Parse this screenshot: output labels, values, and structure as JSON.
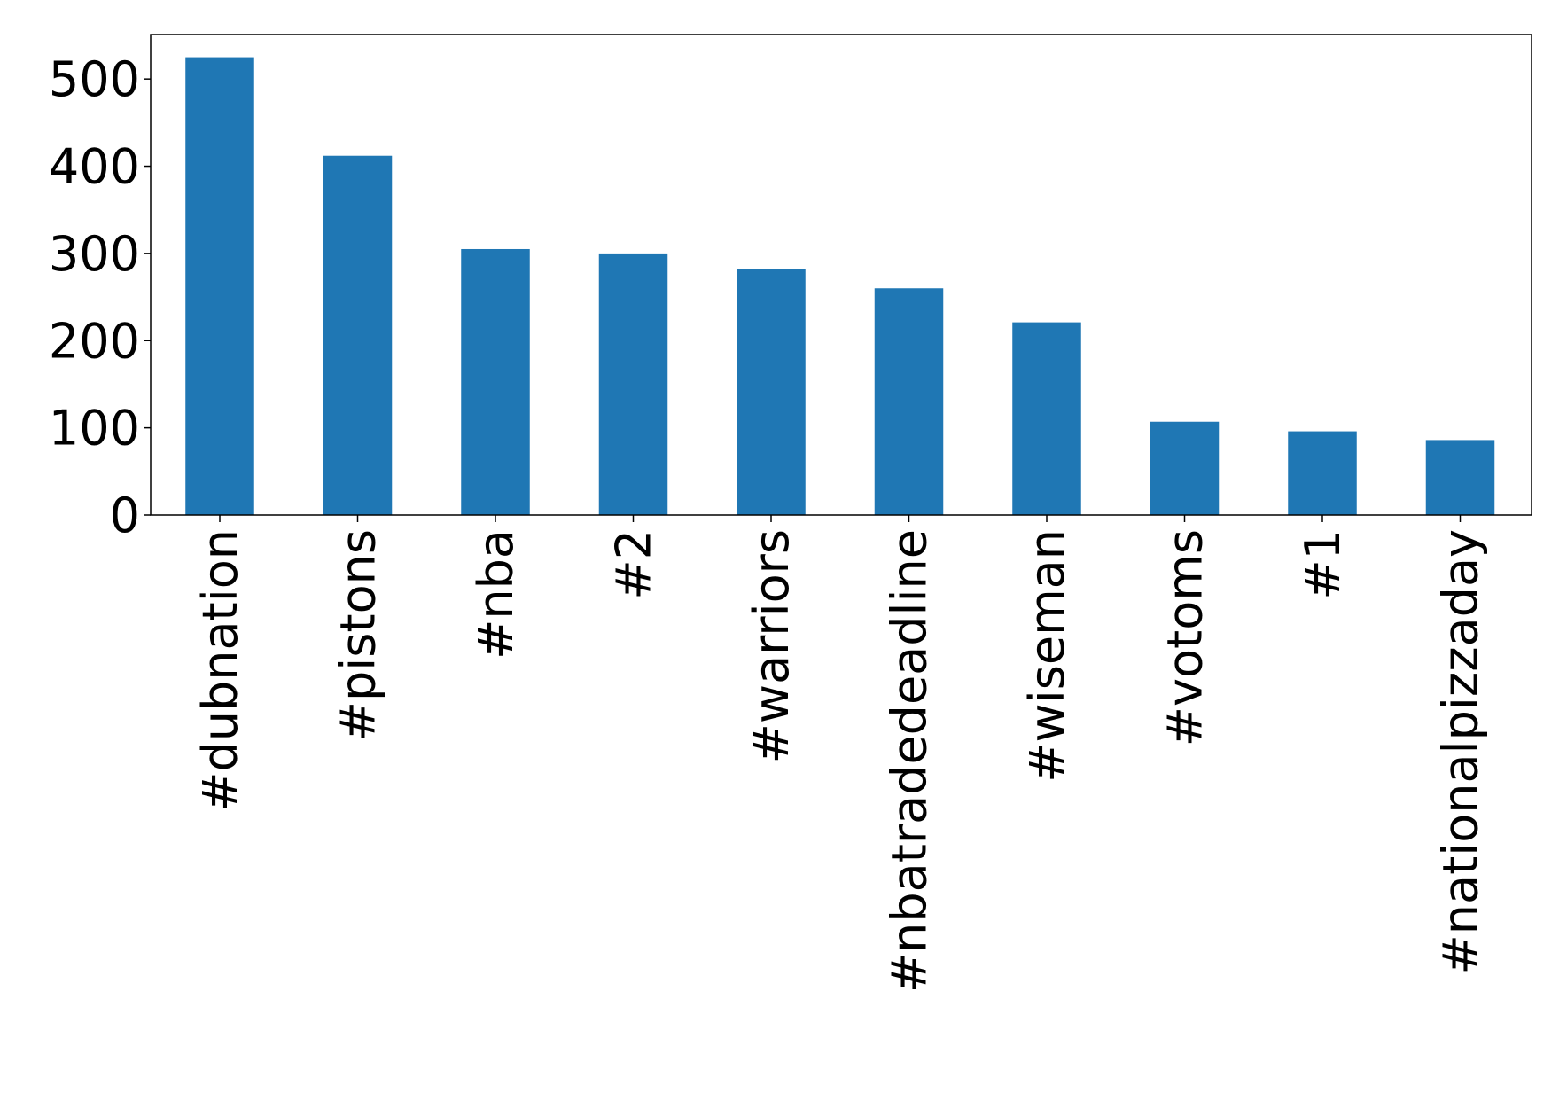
{
  "chart_data": {
    "type": "bar",
    "title": "",
    "xlabel": "",
    "ylabel": "",
    "categories": [
      "#dubnation",
      "#pistons",
      "#nba",
      "#2",
      "#warriors",
      "#nbatradedeadline",
      "#wiseman",
      "#votoms",
      "#1",
      "#nationalpizzaday"
    ],
    "values": [
      525,
      412,
      305,
      300,
      282,
      260,
      221,
      107,
      96,
      86
    ],
    "ylim": [
      0,
      551
    ],
    "yticks": [
      0,
      100,
      200,
      300,
      400,
      500
    ],
    "ytick_labels": [
      "0",
      "100",
      "200",
      "300",
      "400",
      "500"
    ],
    "bar_color": "#1f77b4",
    "grid": false,
    "legend": "none"
  }
}
